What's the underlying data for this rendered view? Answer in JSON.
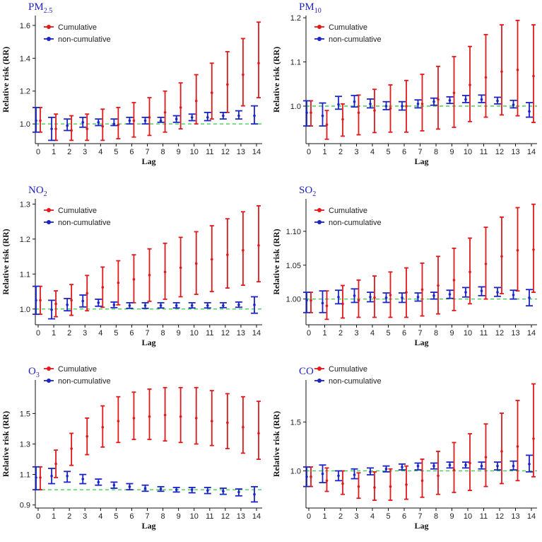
{
  "colors": {
    "cumulative": "#e0191b",
    "noncumulative": "#1b25c4",
    "reference": "#2ecc40",
    "title": "#1f1fbf"
  },
  "legend": {
    "cumulative": "Cumulative",
    "noncumulative": "non-cumulative"
  },
  "chart_data": [
    {
      "type": "errorbar",
      "title": "PM",
      "title_sub": "2.5",
      "xlabel": "Lag",
      "ylabel": "Relative risk (RR)",
      "ylim": [
        0.88,
        1.66
      ],
      "yticks": [
        1.0,
        1.2,
        1.4,
        1.6
      ],
      "ytick_labels": [
        "1.0",
        "1.2",
        "1.4",
        "1.6"
      ],
      "ref": 1.0,
      "x": [
        0,
        1,
        2,
        3,
        4,
        5,
        6,
        7,
        8,
        9,
        10,
        11,
        12,
        13,
        14
      ],
      "series": [
        {
          "name": "Cumulative",
          "est": [
            1.02,
            0.97,
            0.96,
            0.97,
            0.985,
            0.995,
            1.02,
            1.04,
            1.07,
            1.1,
            1.14,
            1.19,
            1.24,
            1.3,
            1.37
          ],
          "lo": [
            0.95,
            0.9,
            0.9,
            0.9,
            0.9,
            0.91,
            0.92,
            0.93,
            0.95,
            0.97,
            1.0,
            1.03,
            1.07,
            1.11,
            1.16
          ],
          "hi": [
            1.1,
            1.06,
            1.05,
            1.06,
            1.09,
            1.1,
            1.13,
            1.16,
            1.2,
            1.25,
            1.3,
            1.37,
            1.44,
            1.52,
            1.62
          ]
        },
        {
          "name": "non-cumulative",
          "est": [
            1.02,
            0.97,
            0.99,
            1.01,
            1.01,
            1.0,
            1.02,
            1.02,
            1.02,
            1.03,
            1.04,
            1.04,
            1.05,
            1.05,
            1.05
          ],
          "lo": [
            0.95,
            0.9,
            0.96,
            0.98,
            0.99,
            0.99,
            1.0,
            1.0,
            1.01,
            1.01,
            1.02,
            1.02,
            1.03,
            1.03,
            1.0
          ],
          "hi": [
            1.1,
            1.04,
            1.03,
            1.04,
            1.03,
            1.03,
            1.04,
            1.04,
            1.04,
            1.05,
            1.06,
            1.07,
            1.07,
            1.08,
            1.11
          ]
        }
      ]
    },
    {
      "type": "errorbar",
      "title": "PM",
      "title_sub": "10",
      "xlabel": "Lag",
      "ylabel": "Relative risk (RR)",
      "ylim": [
        0.915,
        1.205
      ],
      "yticks": [
        1.0,
        1.1,
        1.2
      ],
      "ytick_labels": [
        "1.0",
        "1.1",
        "1.2"
      ],
      "ref": 1.0,
      "x": [
        0,
        1,
        2,
        3,
        4,
        5,
        6,
        7,
        8,
        9,
        10,
        11,
        12,
        13,
        14
      ],
      "series": [
        {
          "name": "Cumulative",
          "est": [
            0.985,
            0.958,
            0.97,
            0.985,
            0.99,
            0.995,
            1.0,
            1.005,
            1.015,
            1.03,
            1.048,
            1.065,
            1.078,
            1.082,
            1.068
          ],
          "lo": [
            0.955,
            0.925,
            0.932,
            0.935,
            0.94,
            0.941,
            0.941,
            0.944,
            0.948,
            0.952,
            0.965,
            0.975,
            0.98,
            0.978,
            0.963
          ],
          "hi": [
            1.012,
            0.99,
            1.005,
            1.025,
            1.038,
            1.048,
            1.058,
            1.072,
            1.09,
            1.112,
            1.135,
            1.162,
            1.184,
            1.194,
            1.184
          ]
        },
        {
          "name": "non-cumulative",
          "est": [
            0.985,
            0.978,
            1.004,
            1.01,
            1.005,
            1.0,
            1.0,
            1.005,
            1.01,
            1.013,
            1.015,
            1.015,
            1.012,
            1.003,
            0.988
          ],
          "lo": [
            0.955,
            0.955,
            0.993,
            0.998,
            0.996,
            0.992,
            0.991,
            0.996,
            1.002,
            1.006,
            1.008,
            1.008,
            1.005,
            0.996,
            0.975
          ],
          "hi": [
            1.012,
            1.007,
            1.022,
            1.024,
            1.016,
            1.01,
            1.01,
            1.014,
            1.018,
            1.021,
            1.024,
            1.025,
            1.02,
            1.013,
            1.008
          ]
        }
      ]
    },
    {
      "type": "errorbar",
      "title": "NO",
      "title_sub": "2",
      "xlabel": "Lag",
      "ylabel": "Relative risk (RR)",
      "ylim": [
        0.955,
        1.315
      ],
      "yticks": [
        1.0,
        1.1,
        1.2,
        1.3
      ],
      "ytick_labels": [
        "1.0",
        "1.1",
        "1.2",
        "1.3"
      ],
      "ref": 1.0,
      "x": [
        0,
        1,
        2,
        3,
        4,
        5,
        6,
        7,
        8,
        9,
        10,
        11,
        12,
        13,
        14
      ],
      "series": [
        {
          "name": "Cumulative",
          "est": [
            1.025,
            1.015,
            1.025,
            1.045,
            1.062,
            1.075,
            1.085,
            1.097,
            1.106,
            1.118,
            1.13,
            1.142,
            1.155,
            1.168,
            1.182
          ],
          "lo": [
            0.985,
            0.978,
            0.982,
            0.995,
            1.005,
            1.012,
            1.018,
            1.022,
            1.028,
            1.035,
            1.042,
            1.05,
            1.06,
            1.068,
            1.078
          ],
          "hi": [
            1.065,
            1.052,
            1.07,
            1.096,
            1.12,
            1.138,
            1.155,
            1.172,
            1.188,
            1.205,
            1.221,
            1.238,
            1.258,
            1.278,
            1.295
          ]
        },
        {
          "name": "non-cumulative",
          "est": [
            1.025,
            0.998,
            1.012,
            1.023,
            1.018,
            1.012,
            1.01,
            1.01,
            1.01,
            1.01,
            1.01,
            1.01,
            1.01,
            1.012,
            1.012
          ],
          "lo": [
            0.985,
            0.972,
            0.995,
            1.006,
            1.008,
            1.004,
            1.002,
            1.002,
            1.003,
            1.003,
            1.003,
            1.003,
            1.004,
            1.005,
            0.988
          ],
          "hi": [
            1.065,
            1.025,
            1.03,
            1.04,
            1.028,
            1.02,
            1.018,
            1.018,
            1.018,
            1.018,
            1.018,
            1.018,
            1.018,
            1.02,
            1.035
          ]
        }
      ]
    },
    {
      "type": "errorbar",
      "title": "SO",
      "title_sub": "2",
      "xlabel": "Lag",
      "ylabel": "Relative risk (RR)",
      "ylim": [
        0.962,
        1.148
      ],
      "yticks": [
        1.0,
        1.05,
        1.1
      ],
      "ytick_labels": [
        "1.00",
        "1.05",
        "1.10"
      ],
      "ref": 1.0,
      "x": [
        0,
        1,
        2,
        3,
        4,
        5,
        6,
        7,
        8,
        9,
        10,
        11,
        12,
        13,
        14
      ],
      "series": [
        {
          "name": "Cumulative",
          "est": [
            0.998,
            0.99,
            0.993,
            0.998,
            1.002,
            1.006,
            1.01,
            1.014,
            1.02,
            1.028,
            1.04,
            1.052,
            1.063,
            1.072,
            1.073
          ],
          "lo": [
            0.98,
            0.97,
            0.972,
            0.973,
            0.973,
            0.973,
            0.973,
            0.975,
            0.978,
            0.983,
            0.993,
            1.0,
            1.008,
            1.012,
            1.01
          ],
          "hi": [
            1.01,
            1.012,
            1.02,
            1.028,
            1.034,
            1.04,
            1.046,
            1.053,
            1.063,
            1.075,
            1.09,
            1.106,
            1.121,
            1.135,
            1.14
          ]
        },
        {
          "name": "non-cumulative",
          "est": [
            0.998,
            0.994,
            1.003,
            1.005,
            1.003,
            1.002,
            1.002,
            1.003,
            1.005,
            1.007,
            1.01,
            1.012,
            1.01,
            1.006,
            1.002
          ],
          "lo": [
            0.98,
            0.98,
            0.993,
            0.995,
            0.996,
            0.995,
            0.995,
            0.997,
            1.0,
            1.001,
            1.003,
            1.005,
            1.004,
            1.0,
            0.99
          ],
          "hi": [
            1.01,
            1.012,
            1.013,
            1.015,
            1.01,
            1.009,
            1.009,
            1.009,
            1.01,
            1.013,
            1.017,
            1.018,
            1.017,
            1.013,
            1.014
          ]
        }
      ]
    },
    {
      "type": "errorbar",
      "title": "O",
      "title_sub": "3",
      "xlabel": "Lag",
      "ylabel": "Relative risk (RR)",
      "ylim": [
        0.88,
        1.72
      ],
      "yticks": [
        0.9,
        1.1,
        1.3,
        1.5
      ],
      "ytick_labels": [
        "0.9",
        "1.1",
        "1.3",
        "1.5"
      ],
      "ref": 1.0,
      "x": [
        0,
        1,
        2,
        3,
        4,
        5,
        6,
        7,
        8,
        9,
        10,
        11,
        12,
        13,
        14
      ],
      "series": [
        {
          "name": "Cumulative",
          "est": [
            1.08,
            1.17,
            1.27,
            1.35,
            1.41,
            1.45,
            1.47,
            1.48,
            1.49,
            1.48,
            1.47,
            1.45,
            1.44,
            1.41,
            1.37
          ],
          "lo": [
            1.0,
            1.08,
            1.16,
            1.23,
            1.28,
            1.31,
            1.33,
            1.33,
            1.32,
            1.31,
            1.3,
            1.29,
            1.27,
            1.24,
            1.2
          ],
          "hi": [
            1.15,
            1.26,
            1.37,
            1.47,
            1.55,
            1.61,
            1.64,
            1.66,
            1.67,
            1.67,
            1.67,
            1.65,
            1.63,
            1.61,
            1.58
          ]
        },
        {
          "name": "non-cumulative",
          "est": [
            1.08,
            1.09,
            1.09,
            1.07,
            1.05,
            1.03,
            1.02,
            1.01,
            1.005,
            1.0,
            1.0,
            0.995,
            0.99,
            0.985,
            0.97
          ],
          "lo": [
            1.0,
            1.04,
            1.05,
            1.04,
            1.03,
            1.01,
            1.0,
            0.99,
            0.99,
            0.985,
            0.98,
            0.975,
            0.97,
            0.96,
            0.92
          ],
          "hi": [
            1.15,
            1.14,
            1.12,
            1.1,
            1.07,
            1.05,
            1.04,
            1.03,
            1.02,
            1.015,
            1.015,
            1.015,
            1.01,
            1.005,
            1.02
          ]
        }
      ]
    },
    {
      "type": "errorbar",
      "title": "CO",
      "title_sub": "",
      "xlabel": "Lag",
      "ylabel": "Relative risk (RR)",
      "ylim": [
        0.62,
        1.93
      ],
      "yticks": [
        1.0,
        1.5
      ],
      "ytick_labels": [
        "1.0",
        "1.5"
      ],
      "ref": 1.0,
      "x": [
        0,
        1,
        2,
        3,
        4,
        5,
        6,
        7,
        8,
        9,
        10,
        11,
        12,
        13,
        14
      ],
      "series": [
        {
          "name": "Cumulative",
          "est": [
            0.94,
            0.9,
            0.87,
            0.84,
            0.83,
            0.84,
            0.86,
            0.9,
            0.95,
            1.01,
            1.08,
            1.14,
            1.2,
            1.25,
            1.33
          ],
          "lo": [
            0.84,
            0.79,
            0.76,
            0.72,
            0.7,
            0.7,
            0.71,
            0.73,
            0.76,
            0.78,
            0.8,
            0.84,
            0.87,
            0.9,
            0.94
          ],
          "hi": [
            1.04,
            1.03,
            1.0,
            0.98,
            0.99,
            1.02,
            1.05,
            1.12,
            1.2,
            1.29,
            1.38,
            1.48,
            1.59,
            1.72,
            1.89
          ]
        },
        {
          "name": "non-cumulative",
          "est": [
            0.94,
            0.97,
            0.95,
            0.96,
            0.99,
            1.02,
            1.04,
            1.05,
            1.05,
            1.06,
            1.06,
            1.05,
            1.05,
            1.05,
            1.07
          ],
          "lo": [
            0.84,
            0.88,
            0.9,
            0.92,
            0.96,
            0.99,
            1.01,
            1.01,
            1.02,
            1.03,
            1.03,
            1.02,
            1.01,
            1.01,
            0.99
          ],
          "hi": [
            1.04,
            1.06,
            1.0,
            1.02,
            1.03,
            1.05,
            1.07,
            1.08,
            1.08,
            1.09,
            1.09,
            1.09,
            1.09,
            1.1,
            1.16
          ]
        }
      ]
    }
  ]
}
